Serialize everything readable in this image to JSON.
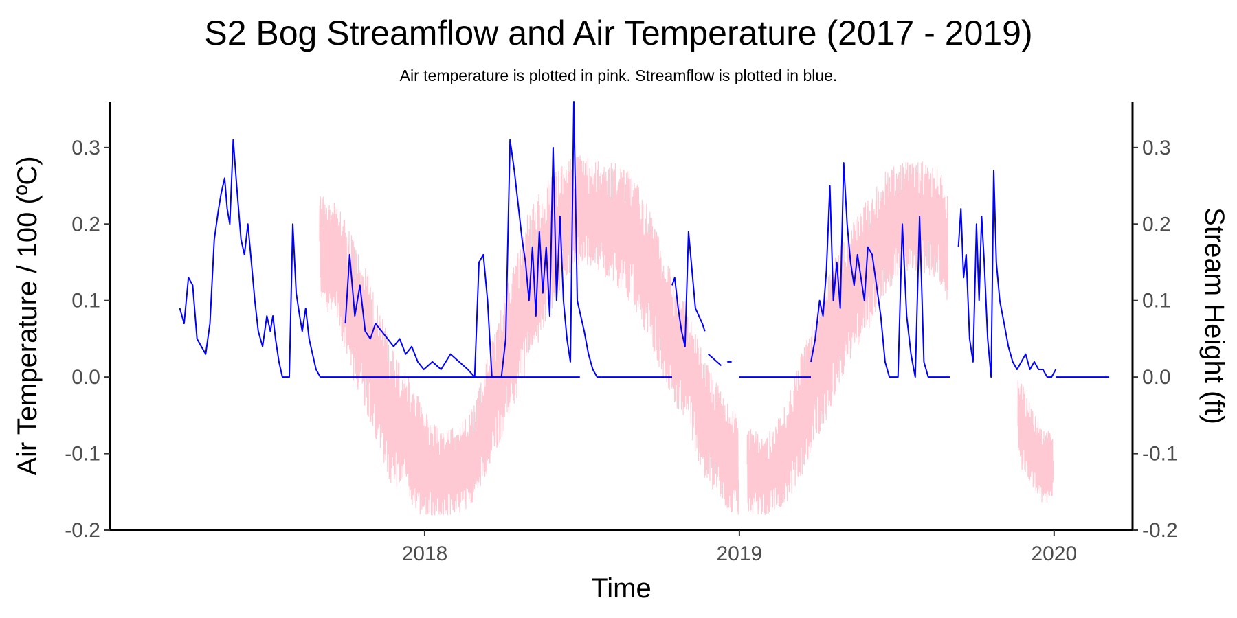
{
  "chart_data": {
    "type": "line",
    "title": "S2 Bog Streamflow and Air Temperature (2017 - 2019)",
    "subtitle": "Air temperature is plotted in pink. Streamflow is plotted in blue.",
    "xlabel": "Time",
    "ylabel_left": "Air Temperature / 100 (ºC)",
    "ylabel_right": "Stream Height (ft)",
    "xlim": [
      "2017-01-01",
      "2020-04-01"
    ],
    "ylim": [
      -0.2,
      0.36
    ],
    "x_ticks": [
      {
        "date": "2018-01-01",
        "label": "2018"
      },
      {
        "date": "2019-01-01",
        "label": "2019"
      },
      {
        "date": "2020-01-01",
        "label": "2020"
      }
    ],
    "y_ticks": [
      {
        "value": -0.2,
        "label": "-0.2"
      },
      {
        "value": -0.1,
        "label": "-0.1"
      },
      {
        "value": 0.0,
        "label": "0.0"
      },
      {
        "value": 0.1,
        "label": "0.1"
      },
      {
        "value": 0.2,
        "label": "0.2"
      },
      {
        "value": 0.3,
        "label": "0.3"
      }
    ],
    "grid": false,
    "legend": "none",
    "series": [
      {
        "color": "#ffc0cb",
        "style": "dense-noisy-line",
        "segments": [
          {
            "x": [
              "2017-09-01",
              "2017-09-20",
              "2017-10-10",
              "2017-10-31",
              "2017-11-20",
              "2017-12-10",
              "2017-12-31",
              "2018-01-20",
              "2018-02-10",
              "2018-02-28",
              "2018-03-20",
              "2018-04-10",
              "2018-04-30",
              "2018-05-20",
              "2018-06-10",
              "2018-06-30",
              "2018-07-20",
              "2018-08-10",
              "2018-08-31",
              "2018-09-20",
              "2018-10-10",
              "2018-10-31",
              "2018-11-20",
              "2018-12-10",
              "2018-12-31"
            ],
            "y": [
              0.17,
              0.15,
              0.09,
              0.03,
              -0.04,
              -0.08,
              -0.11,
              -0.13,
              -0.12,
              -0.1,
              -0.03,
              0.04,
              0.11,
              0.16,
              0.2,
              0.22,
              0.21,
              0.2,
              0.18,
              0.13,
              0.06,
              0.02,
              -0.05,
              -0.09,
              -0.12
            ],
            "band": [
              0.1,
              0.11,
              0.13,
              0.13,
              0.13,
              0.12,
              0.1,
              0.08,
              0.08,
              0.09,
              0.11,
              0.13,
              0.14,
              0.13,
              0.11,
              0.1,
              0.1,
              0.11,
              0.12,
              0.12,
              0.12,
              0.11,
              0.11,
              0.1,
              0.09
            ]
          },
          {
            "x": [
              "2019-01-10",
              "2019-01-31",
              "2019-02-20",
              "2019-03-10",
              "2019-03-31",
              "2019-04-20",
              "2019-05-10",
              "2019-05-31",
              "2019-06-20",
              "2019-07-10",
              "2019-07-31",
              "2019-08-20",
              "2019-08-31"
            ],
            "y": [
              -0.12,
              -0.13,
              -0.11,
              -0.06,
              0.0,
              0.06,
              0.11,
              0.15,
              0.19,
              0.21,
              0.21,
              0.2,
              0.17
            ],
            "band": [
              0.08,
              0.07,
              0.09,
              0.11,
              0.12,
              0.13,
              0.12,
              0.12,
              0.11,
              0.1,
              0.1,
              0.1,
              0.1
            ]
          },
          {
            "x": [
              "2019-11-20",
              "2019-12-01",
              "2019-12-10",
              "2019-12-20",
              "2019-12-31"
            ],
            "y": [
              -0.05,
              -0.08,
              -0.1,
              -0.12,
              -0.11
            ],
            "band": [
              0.08,
              0.08,
              0.07,
              0.07,
              0.06
            ]
          }
        ]
      },
      {
        "color": "#0000ff",
        "style": "line",
        "segments": [
          {
            "x": [
              "2017-03-23",
              "2017-03-28",
              "2017-04-02",
              "2017-04-07",
              "2017-04-12",
              "2017-04-17",
              "2017-04-22",
              "2017-04-27",
              "2017-05-02",
              "2017-05-07",
              "2017-05-10",
              "2017-05-14",
              "2017-05-17",
              "2017-05-20",
              "2017-05-24",
              "2017-05-28",
              "2017-06-02",
              "2017-06-06",
              "2017-06-10",
              "2017-06-14",
              "2017-06-18",
              "2017-06-22",
              "2017-06-27",
              "2017-07-02",
              "2017-07-06",
              "2017-07-09",
              "2017-07-12",
              "2017-07-16",
              "2017-07-20",
              "2017-07-24",
              "2017-07-28",
              "2017-08-01",
              "2017-08-05",
              "2017-08-09",
              "2017-08-12",
              "2017-08-16",
              "2017-08-20",
              "2017-08-24",
              "2017-08-28",
              "2017-09-02"
            ],
            "y": [
              0.09,
              0.07,
              0.13,
              0.12,
              0.05,
              0.04,
              0.03,
              0.07,
              0.18,
              0.22,
              0.24,
              0.26,
              0.22,
              0.2,
              0.31,
              0.25,
              0.18,
              0.16,
              0.2,
              0.15,
              0.1,
              0.06,
              0.04,
              0.08,
              0.06,
              0.08,
              0.05,
              0.02,
              0.0,
              0.0,
              0.0,
              0.2,
              0.11,
              0.08,
              0.06,
              0.09,
              0.05,
              0.03,
              0.01,
              0.0
            ]
          },
          {
            "x": [
              "2017-09-02",
              "2017-09-15",
              "2017-10-01",
              "2017-10-15",
              "2017-11-01",
              "2017-11-15",
              "2017-12-01",
              "2017-12-15",
              "2017-12-31",
              "2018-01-15",
              "2018-02-01",
              "2018-02-15",
              "2018-03-01",
              "2018-03-15",
              "2018-03-31",
              "2018-04-15",
              "2018-05-01",
              "2018-05-15",
              "2018-05-31",
              "2018-06-15",
              "2018-06-30"
            ],
            "y": [
              0.0,
              0.0,
              0.0,
              0.0,
              0.0,
              0.0,
              0.0,
              0.0,
              0.0,
              0.0,
              0.0,
              0.0,
              0.0,
              0.0,
              0.0,
              0.0,
              0.0,
              0.0,
              0.0,
              0.0,
              0.0
            ]
          },
          {
            "x": [
              "2017-10-01",
              "2017-10-06",
              "2017-10-12",
              "2017-10-18",
              "2017-10-24",
              "2017-10-30",
              "2017-11-05",
              "2017-11-12",
              "2017-11-19",
              "2017-11-26",
              "2017-12-03",
              "2017-12-10",
              "2017-12-17",
              "2017-12-24",
              "2017-12-31",
              "2018-01-10",
              "2018-01-20",
              "2018-01-31",
              "2018-02-10",
              "2018-02-20",
              "2018-02-28"
            ],
            "y": [
              0.07,
              0.16,
              0.08,
              0.12,
              0.06,
              0.05,
              0.07,
              0.06,
              0.05,
              0.04,
              0.05,
              0.03,
              0.04,
              0.02,
              0.01,
              0.02,
              0.01,
              0.03,
              0.02,
              0.01,
              0.0
            ]
          },
          {
            "x": [
              "2018-02-28",
              "2018-03-05",
              "2018-03-10",
              "2018-03-15",
              "2018-03-20",
              "2018-03-25",
              "2018-03-31",
              "2018-04-05",
              "2018-04-10",
              "2018-04-15",
              "2018-04-20",
              "2018-04-24",
              "2018-04-28",
              "2018-05-02",
              "2018-05-06",
              "2018-05-10",
              "2018-05-14",
              "2018-05-18",
              "2018-05-22",
              "2018-05-26",
              "2018-05-30",
              "2018-06-03",
              "2018-06-07",
              "2018-06-11",
              "2018-06-15",
              "2018-06-19",
              "2018-06-23",
              "2018-06-27",
              "2018-07-01",
              "2018-07-05",
              "2018-07-10",
              "2018-07-15",
              "2018-07-20",
              "2018-07-25"
            ],
            "y": [
              0.0,
              0.15,
              0.16,
              0.1,
              0.0,
              0.0,
              0.0,
              0.05,
              0.31,
              0.27,
              0.22,
              0.18,
              0.15,
              0.1,
              0.17,
              0.08,
              0.19,
              0.11,
              0.17,
              0.08,
              0.3,
              0.1,
              0.21,
              0.1,
              0.05,
              0.02,
              0.36,
              0.1,
              0.08,
              0.06,
              0.03,
              0.01,
              0.0,
              0.0
            ]
          },
          {
            "x": [
              "2018-07-25",
              "2018-08-10",
              "2018-08-25",
              "2018-09-10",
              "2018-09-25",
              "2018-10-10",
              "2018-10-15"
            ],
            "y": [
              0.0,
              0.0,
              0.0,
              0.0,
              0.0,
              0.0,
              0.0
            ]
          },
          {
            "x": [
              "2018-10-15",
              "2018-10-18",
              "2018-10-22",
              "2018-10-26",
              "2018-10-30",
              "2018-11-03",
              "2018-11-07",
              "2018-11-11",
              "2018-11-15",
              "2018-11-19",
              "2018-11-22"
            ],
            "y": [
              0.12,
              0.13,
              0.09,
              0.06,
              0.04,
              0.19,
              0.14,
              0.09,
              0.08,
              0.07,
              0.06
            ]
          },
          {
            "x": [
              "2018-11-26",
              "2018-12-01",
              "2018-12-06",
              "2018-12-11"
            ],
            "y": [
              0.03,
              0.025,
              0.02,
              0.015
            ]
          },
          {
            "x": [
              "2018-12-18",
              "2018-12-23"
            ],
            "y": [
              0.02,
              0.02
            ]
          },
          {
            "x": [
              "2019-01-01",
              "2019-01-15",
              "2019-01-31",
              "2019-02-15",
              "2019-02-28",
              "2019-03-15",
              "2019-03-25"
            ],
            "y": [
              0.0,
              0.0,
              0.0,
              0.0,
              0.0,
              0.0,
              0.0
            ]
          },
          {
            "x": [
              "2019-03-25",
              "2019-03-30",
              "2019-04-04",
              "2019-04-08",
              "2019-04-12",
              "2019-04-16",
              "2019-04-20",
              "2019-04-24",
              "2019-04-28",
              "2019-05-02",
              "2019-05-06",
              "2019-05-10",
              "2019-05-14",
              "2019-05-18",
              "2019-05-22",
              "2019-05-26",
              "2019-05-30",
              "2019-06-04",
              "2019-06-09",
              "2019-06-14",
              "2019-06-19",
              "2019-06-24",
              "2019-06-29",
              "2019-07-04",
              "2019-07-09",
              "2019-07-14",
              "2019-07-19",
              "2019-07-24",
              "2019-07-29",
              "2019-08-03",
              "2019-08-08",
              "2019-08-13",
              "2019-08-18",
              "2019-08-23",
              "2019-08-28",
              "2019-09-02"
            ],
            "y": [
              0.02,
              0.05,
              0.1,
              0.08,
              0.14,
              0.25,
              0.1,
              0.15,
              0.09,
              0.28,
              0.2,
              0.15,
              0.12,
              0.16,
              0.13,
              0.1,
              0.17,
              0.16,
              0.12,
              0.08,
              0.02,
              0.0,
              0.0,
              0.0,
              0.2,
              0.08,
              0.03,
              0.0,
              0.21,
              0.02,
              0.0,
              0.0,
              0.0,
              0.0,
              0.0,
              0.0
            ]
          },
          {
            "x": [
              "2019-09-12",
              "2019-09-15",
              "2019-09-18",
              "2019-09-21",
              "2019-09-25",
              "2019-09-29",
              "2019-10-03",
              "2019-10-06",
              "2019-10-09",
              "2019-10-12",
              "2019-10-16",
              "2019-10-20",
              "2019-10-23",
              "2019-10-26",
              "2019-10-30",
              "2019-11-04",
              "2019-11-09",
              "2019-11-14",
              "2019-11-19",
              "2019-11-24",
              "2019-11-29",
              "2019-12-04",
              "2019-12-09",
              "2019-12-14",
              "2019-12-19",
              "2019-12-24",
              "2019-12-29",
              "2020-01-03"
            ],
            "y": [
              0.17,
              0.22,
              0.13,
              0.16,
              0.05,
              0.02,
              0.2,
              0.1,
              0.21,
              0.15,
              0.05,
              0.0,
              0.27,
              0.15,
              0.1,
              0.07,
              0.04,
              0.02,
              0.01,
              0.02,
              0.03,
              0.01,
              0.02,
              0.01,
              0.01,
              0.0,
              0.0,
              0.01
            ]
          },
          {
            "x": [
              "2020-01-03",
              "2020-01-20",
              "2020-02-05",
              "2020-02-20",
              "2020-03-05"
            ],
            "y": [
              0.0,
              0.0,
              0.0,
              0.0,
              0.0
            ]
          }
        ]
      }
    ]
  }
}
